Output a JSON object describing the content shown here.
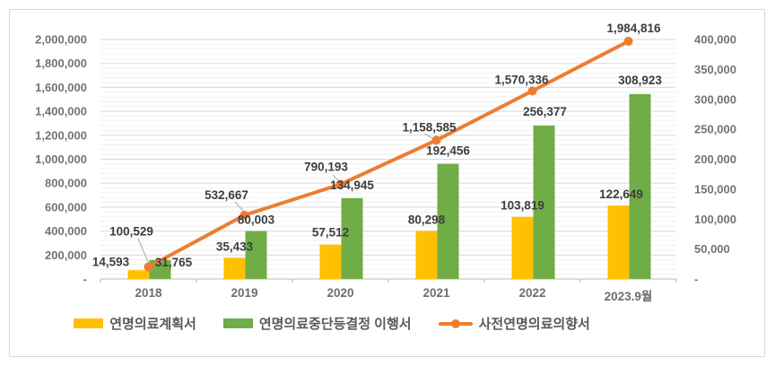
{
  "chart_data": {
    "type": "combo",
    "title": "",
    "categories": [
      "2018",
      "2019",
      "2020",
      "2021",
      "2022",
      "2023.9월"
    ],
    "series": [
      {
        "name": "연명의료계획서",
        "type": "bar",
        "axis": "right",
        "color": "#FFC000",
        "values": [
          14593,
          35433,
          57512,
          80298,
          103819,
          122649
        ],
        "label_offsets": [
          [
            -31,
            3
          ],
          [
            0,
            0
          ],
          [
            0,
            -1
          ],
          [
            0,
            0
          ],
          [
            0,
            0
          ],
          [
            3,
            0
          ]
        ]
      },
      {
        "name": "연명의료중단등결정 이행서",
        "type": "bar",
        "axis": "right",
        "color": "#70AD47",
        "values": [
          31765,
          80003,
          134945,
          192456,
          256377,
          308923
        ],
        "label_offsets": [
          [
            15,
            15
          ],
          [
            0,
            0
          ],
          [
            0,
            -2
          ],
          [
            0,
            -2
          ],
          [
            1,
            -3
          ],
          [
            0,
            -3
          ]
        ]
      },
      {
        "name": "사전연명의료의향서",
        "type": "line",
        "axis": "left",
        "color": "#ED7D31",
        "values": [
          100529,
          532667,
          790193,
          1158585,
          1570336,
          1984816
        ],
        "label_offsets": [
          [
            -19,
            -23
          ],
          [
            -20,
            -6
          ],
          [
            -16,
            -3
          ],
          [
            -8,
            2
          ],
          [
            -12,
            4
          ],
          [
            6,
            2
          ]
        ],
        "leader_lines": [
          [
            154,
            266,
            166,
            294
          ],
          [
            262,
            225,
            272,
            236
          ],
          [
            371,
            195,
            378,
            202
          ],
          [
            473,
            149,
            484,
            155
          ],
          null,
          null
        ]
      }
    ],
    "axes": {
      "left": {
        "min": 0,
        "max": 2000000,
        "step": 200000,
        "tick_labels": [
          "-",
          "200,000",
          "400,000",
          "600,000",
          "800,000",
          "1,000,000",
          "1,200,000",
          "1,400,000",
          "1,600,000",
          "1,800,000",
          "2,000,000"
        ]
      },
      "right": {
        "min": 0,
        "max": 400000,
        "step": 50000,
        "tick_labels": [
          "-",
          "50,000",
          "100,000",
          "150,000",
          "200,000",
          "250,000",
          "300,000",
          "350,000",
          "400,000"
        ]
      }
    },
    "grid": {
      "major_on": true,
      "minor_divisions": 5
    },
    "legend_position": "bottom",
    "x_label_dy": [
      0,
      0,
      0,
      0,
      0,
      4
    ],
    "colors": {
      "bar1": "#FFC000",
      "bar2": "#70AD47",
      "line": "#ED7D31",
      "gridline": "#d9d9d9",
      "minor_gridline": "#f1f1f1",
      "axis_line": "#c6c6c6",
      "tick_text": "#737373",
      "data_label": "#3d3d3d",
      "leader": "#b3b3b3",
      "legend_text": "#595959",
      "card_border": "#d9d9d9"
    }
  }
}
